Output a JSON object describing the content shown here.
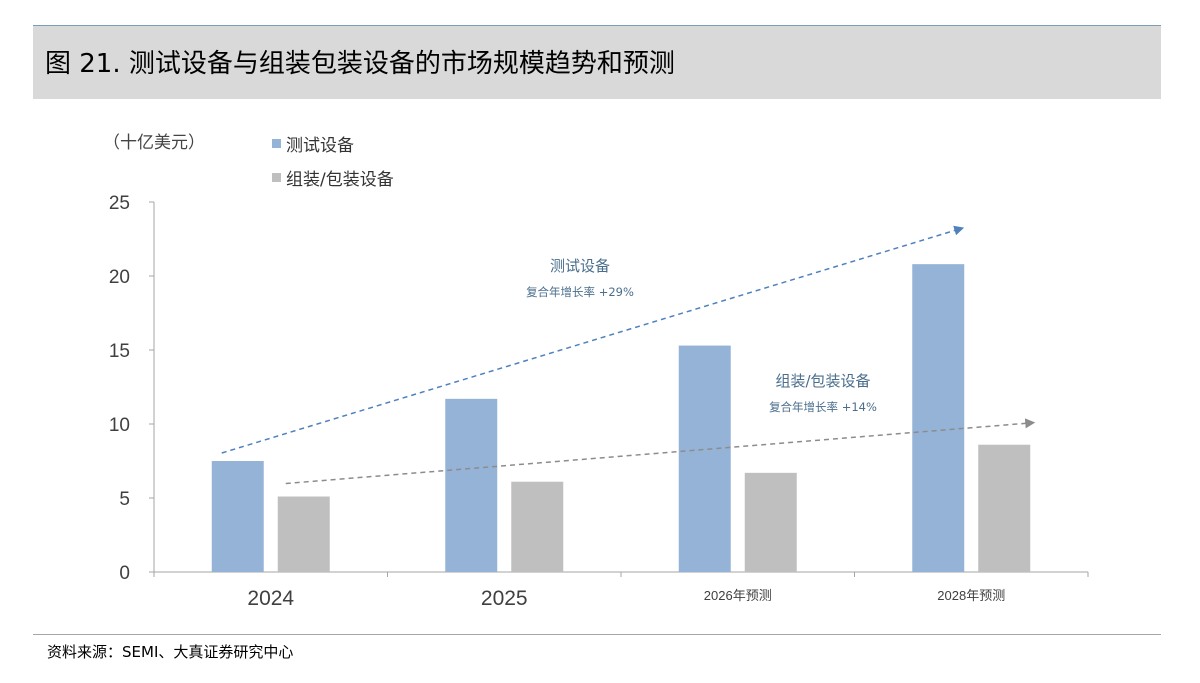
{
  "figure": {
    "title": "图 21. 测试设备与组装包装设备的市场规模趋势和预测",
    "unit": "（十亿美元）",
    "source": "资料来源：SEMI、大真证券研究中心"
  },
  "chart_data": {
    "type": "bar",
    "title": "图 21. 测试设备与组装包装设备的市场规模趋势和预测",
    "ylabel": "（十亿美元）",
    "xlabel": "",
    "categories": [
      "2024",
      "2025",
      "2026年预测",
      "2028年预测"
    ],
    "series": [
      {
        "name": "测试设备",
        "color": "#95b3d7",
        "values": [
          7.5,
          11.7,
          15.3,
          20.8
        ]
      },
      {
        "name": "组装/包装设备",
        "color": "#bfbfbf",
        "values": [
          5.1,
          6.1,
          6.7,
          8.6
        ]
      }
    ],
    "ylim": [
      0,
      25
    ],
    "yticks": [
      0,
      5,
      10,
      15,
      20,
      25
    ],
    "grid": false,
    "legend": "top-left",
    "annotations": [
      {
        "label": "测试设备",
        "sublabel": "复合年增长率 +29%",
        "color": "#4f81bd"
      },
      {
        "label": "组装/包装设备",
        "sublabel": "复合年增长率 +14%",
        "color": "#8c8c8c"
      }
    ]
  }
}
